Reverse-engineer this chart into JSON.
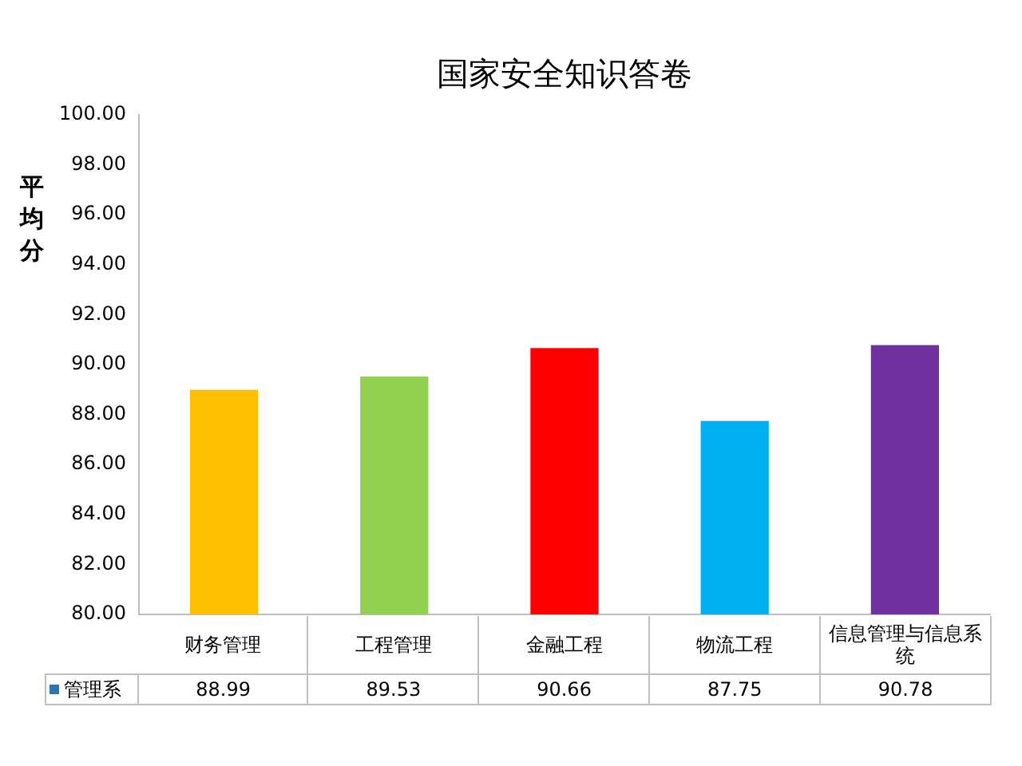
{
  "chart_data": {
    "type": "bar",
    "title": "国家安全知识答卷",
    "ylabel": "平均分",
    "categories": [
      "财务管理",
      "工程管理",
      "金融工程",
      "物流工程",
      "信息管理与信息系统"
    ],
    "series": [
      {
        "name": "管理系",
        "color": "#2e75b6",
        "colors": [
          "#ffc000",
          "#92d050",
          "#ff0000",
          "#00b0f0",
          "#7030a0"
        ],
        "values": [
          88.99,
          89.53,
          90.66,
          87.75,
          90.78
        ]
      }
    ],
    "ylim": [
      80,
      100
    ],
    "yticks": [
      {
        "value": 80,
        "label": "80.00"
      },
      {
        "value": 82,
        "label": "82.00"
      },
      {
        "value": 84,
        "label": "84.00"
      },
      {
        "value": 86,
        "label": "86.00"
      },
      {
        "value": 88,
        "label": "88.00"
      },
      {
        "value": 90,
        "label": "90.00"
      },
      {
        "value": 92,
        "label": "92.00"
      },
      {
        "value": 94,
        "label": "94.00"
      },
      {
        "value": 96,
        "label": "96.00"
      },
      {
        "value": 98,
        "label": "98.00"
      },
      {
        "value": 100,
        "label": "100.00"
      }
    ],
    "grid": false,
    "legend": "bottom",
    "data_labels": true
  }
}
